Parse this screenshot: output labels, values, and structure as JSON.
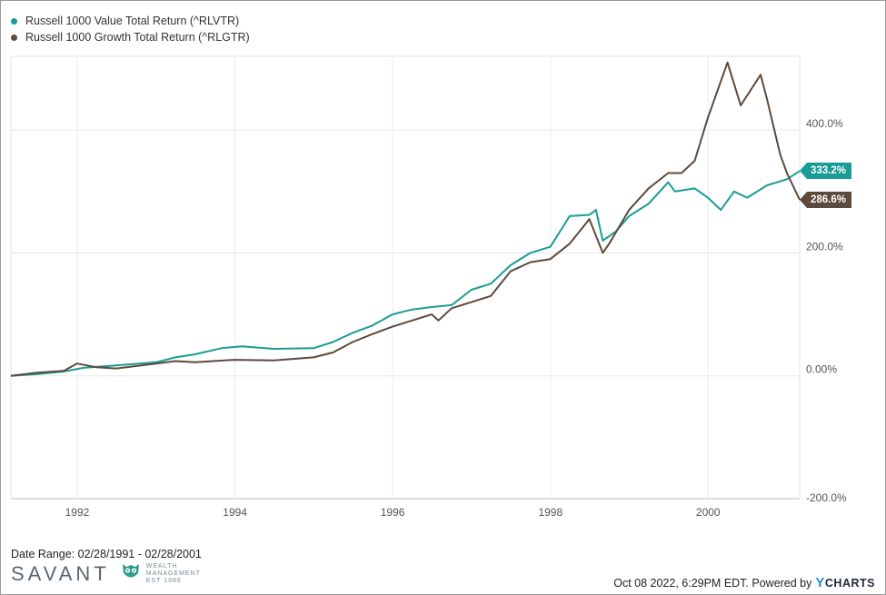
{
  "chart_data": {
    "type": "line",
    "xlabel": "",
    "ylabel": "",
    "x_ticks": [
      "1992",
      "1994",
      "1996",
      "1998",
      "2000"
    ],
    "y_ticks": [
      "-200.0%",
      "0.00%",
      "200.0%",
      "400.0%"
    ],
    "xlim": [
      "1991-02-28",
      "2001-02-28"
    ],
    "ylim": [
      -200,
      520
    ],
    "grid": true,
    "legend_position": "top-left",
    "series": [
      {
        "name": "Russell 1000 Value Total Return (^RLVTR)",
        "color": "#1a9c96",
        "end_label": "333.2%",
        "points": [
          [
            "1991-02-28",
            0
          ],
          [
            "1991-06-30",
            3
          ],
          [
            "1991-10-31",
            7
          ],
          [
            "1992-01-31",
            13
          ],
          [
            "1992-06-30",
            17
          ],
          [
            "1992-12-31",
            22
          ],
          [
            "1993-03-31",
            30
          ],
          [
            "1993-06-30",
            35
          ],
          [
            "1993-10-31",
            45
          ],
          [
            "1994-01-31",
            48
          ],
          [
            "1994-06-30",
            44
          ],
          [
            "1994-12-31",
            45
          ],
          [
            "1995-03-31",
            55
          ],
          [
            "1995-06-30",
            70
          ],
          [
            "1995-09-30",
            82
          ],
          [
            "1995-12-31",
            100
          ],
          [
            "1996-03-31",
            108
          ],
          [
            "1996-06-30",
            112
          ],
          [
            "1996-09-30",
            115
          ],
          [
            "1996-12-31",
            140
          ],
          [
            "1997-03-31",
            150
          ],
          [
            "1997-06-30",
            180
          ],
          [
            "1997-09-30",
            200
          ],
          [
            "1997-12-31",
            210
          ],
          [
            "1998-03-31",
            260
          ],
          [
            "1998-06-30",
            262
          ],
          [
            "1998-07-31",
            270
          ],
          [
            "1998-08-31",
            220
          ],
          [
            "1998-10-31",
            235
          ],
          [
            "1998-12-31",
            260
          ],
          [
            "1999-03-31",
            280
          ],
          [
            "1999-06-30",
            315
          ],
          [
            "1999-07-31",
            300
          ],
          [
            "1999-10-31",
            305
          ],
          [
            "1999-12-31",
            290
          ],
          [
            "2000-02-29",
            270
          ],
          [
            "2000-04-30",
            300
          ],
          [
            "2000-06-30",
            290
          ],
          [
            "2000-09-30",
            310
          ],
          [
            "2000-12-31",
            320
          ],
          [
            "2001-02-28",
            333.2
          ]
        ]
      },
      {
        "name": "Russell 1000 Growth Total Return (^RLGTR)",
        "color": "#5c4a3c",
        "end_label": "286.6%",
        "points": [
          [
            "1991-02-28",
            0
          ],
          [
            "1991-06-30",
            5
          ],
          [
            "1991-10-31",
            8
          ],
          [
            "1991-12-31",
            20
          ],
          [
            "1992-03-31",
            14
          ],
          [
            "1992-06-30",
            12
          ],
          [
            "1992-12-31",
            20
          ],
          [
            "1993-03-31",
            24
          ],
          [
            "1993-06-30",
            22
          ],
          [
            "1993-12-31",
            26
          ],
          [
            "1994-06-30",
            25
          ],
          [
            "1994-12-31",
            30
          ],
          [
            "1995-03-31",
            38
          ],
          [
            "1995-06-30",
            55
          ],
          [
            "1995-09-30",
            68
          ],
          [
            "1995-12-31",
            80
          ],
          [
            "1996-03-31",
            90
          ],
          [
            "1996-06-30",
            100
          ],
          [
            "1996-07-31",
            90
          ],
          [
            "1996-09-30",
            110
          ],
          [
            "1996-12-31",
            120
          ],
          [
            "1997-03-31",
            130
          ],
          [
            "1997-06-30",
            170
          ],
          [
            "1997-09-30",
            185
          ],
          [
            "1997-12-31",
            190
          ],
          [
            "1998-03-31",
            215
          ],
          [
            "1998-06-30",
            255
          ],
          [
            "1998-08-31",
            200
          ],
          [
            "1998-09-30",
            215
          ],
          [
            "1998-12-31",
            270
          ],
          [
            "1999-03-31",
            305
          ],
          [
            "1999-06-30",
            330
          ],
          [
            "1999-08-31",
            330
          ],
          [
            "1999-10-31",
            350
          ],
          [
            "1999-12-31",
            420
          ],
          [
            "2000-03-31",
            510
          ],
          [
            "2000-05-31",
            440
          ],
          [
            "2000-08-31",
            490
          ],
          [
            "2000-09-30",
            450
          ],
          [
            "2000-11-30",
            360
          ],
          [
            "2000-12-31",
            330
          ],
          [
            "2001-02-28",
            286.6
          ]
        ]
      }
    ]
  },
  "footer": {
    "date_range": "Date Range: 02/28/1991 - 02/28/2001",
    "logo_word": "SAVANT",
    "logo_sub_1": "WEALTH",
    "logo_sub_2": "MANAGEMENT",
    "logo_sub_3": "EST 1986",
    "credit_text": "Oct 08 2022, 6:29PM EDT. Powered by",
    "credit_brand_y": "Y",
    "credit_brand_rest": "CHARTS"
  }
}
